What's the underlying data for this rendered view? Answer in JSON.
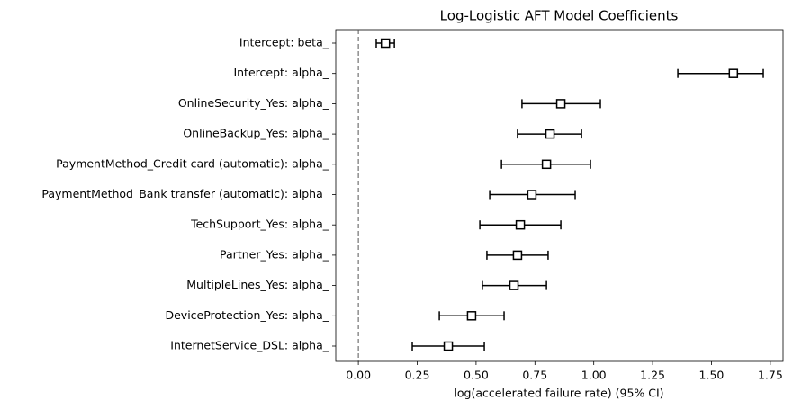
{
  "chart_data": {
    "type": "forest",
    "title": "Log-Logistic AFT Model Coefficients",
    "xlabel": "log(accelerated failure rate) (95% CI)",
    "categories": [
      "Intercept: beta_",
      "Intercept: alpha_",
      "OnlineSecurity_Yes: alpha_",
      "OnlineBackup_Yes: alpha_",
      "PaymentMethod_Credit card (automatic): alpha_",
      "PaymentMethod_Bank transfer (automatic): alpha_",
      "TechSupport_Yes: alpha_",
      "Partner_Yes: alpha_",
      "MultipleLines_Yes: alpha_",
      "DeviceProtection_Yes: alpha_",
      "InternetService_DSL: alpha_"
    ],
    "values": [
      0.115,
      1.593,
      0.86,
      0.814,
      0.799,
      0.737,
      0.688,
      0.676,
      0.661,
      0.481,
      0.382
    ],
    "lower": [
      0.076,
      1.357,
      0.695,
      0.676,
      0.608,
      0.558,
      0.516,
      0.546,
      0.527,
      0.344,
      0.229
    ],
    "upper": [
      0.153,
      1.72,
      1.028,
      0.948,
      0.986,
      0.921,
      0.86,
      0.806,
      0.799,
      0.619,
      0.535
    ],
    "xlim": [
      -0.096,
      1.804
    ],
    "xticks": [
      {
        "value": 0,
        "label": "0.00"
      },
      {
        "value": 0.25,
        "label": "0.25"
      },
      {
        "value": 0.5,
        "label": "0.50"
      },
      {
        "value": 0.75,
        "label": "0.75"
      },
      {
        "value": 1,
        "label": "1.00"
      },
      {
        "value": 1.25,
        "label": "1.25"
      },
      {
        "value": 1.5,
        "label": "1.50"
      },
      {
        "value": 1.75,
        "label": "1.75"
      }
    ],
    "reference_line": 0,
    "color": "#000000"
  }
}
